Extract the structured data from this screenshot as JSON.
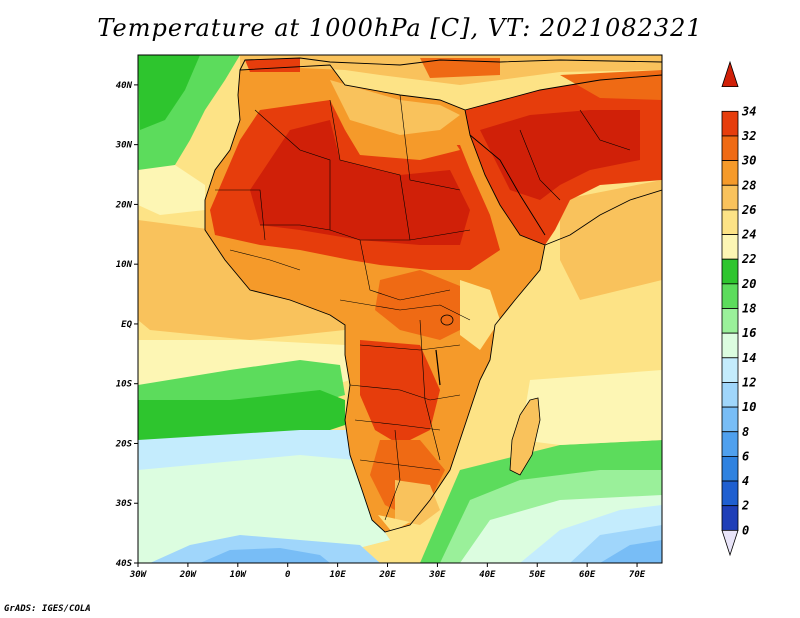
{
  "title": "Temperature at 1000hPa [C], VT: 2021082321",
  "credit": "GrADS: IGES/COLA",
  "map": {
    "lon_range": [
      -30,
      75
    ],
    "lat_range": [
      -40,
      45
    ],
    "lon_ticks": [
      "30W",
      "20W",
      "10W",
      "0",
      "10E",
      "20E",
      "30E",
      "40E",
      "50E",
      "60E",
      "70E"
    ],
    "lat_ticks": [
      "40N",
      "30N",
      "20N",
      "10N",
      "EQ",
      "10S",
      "20S",
      "30S",
      "40S"
    ]
  },
  "colorbar": {
    "labels": [
      "0",
      "2",
      "4",
      "6",
      "8",
      "10",
      "12",
      "14",
      "16",
      "18",
      "20",
      "22",
      "24",
      "26",
      "28",
      "30",
      "32",
      "34"
    ],
    "colors": [
      "#20208c",
      "#1f3fb8",
      "#1f5fd0",
      "#2f82e0",
      "#4fa0ee",
      "#78bdf6",
      "#a0d6fb",
      "#c4ecfd",
      "#dcfde0",
      "#9af09a",
      "#5cdc5c",
      "#2ec52e",
      "#fdf6b4",
      "#fde386",
      "#f9c25c",
      "#f59a2a",
      "#ef6a14",
      "#e63d0c",
      "#d02008"
    ]
  }
}
